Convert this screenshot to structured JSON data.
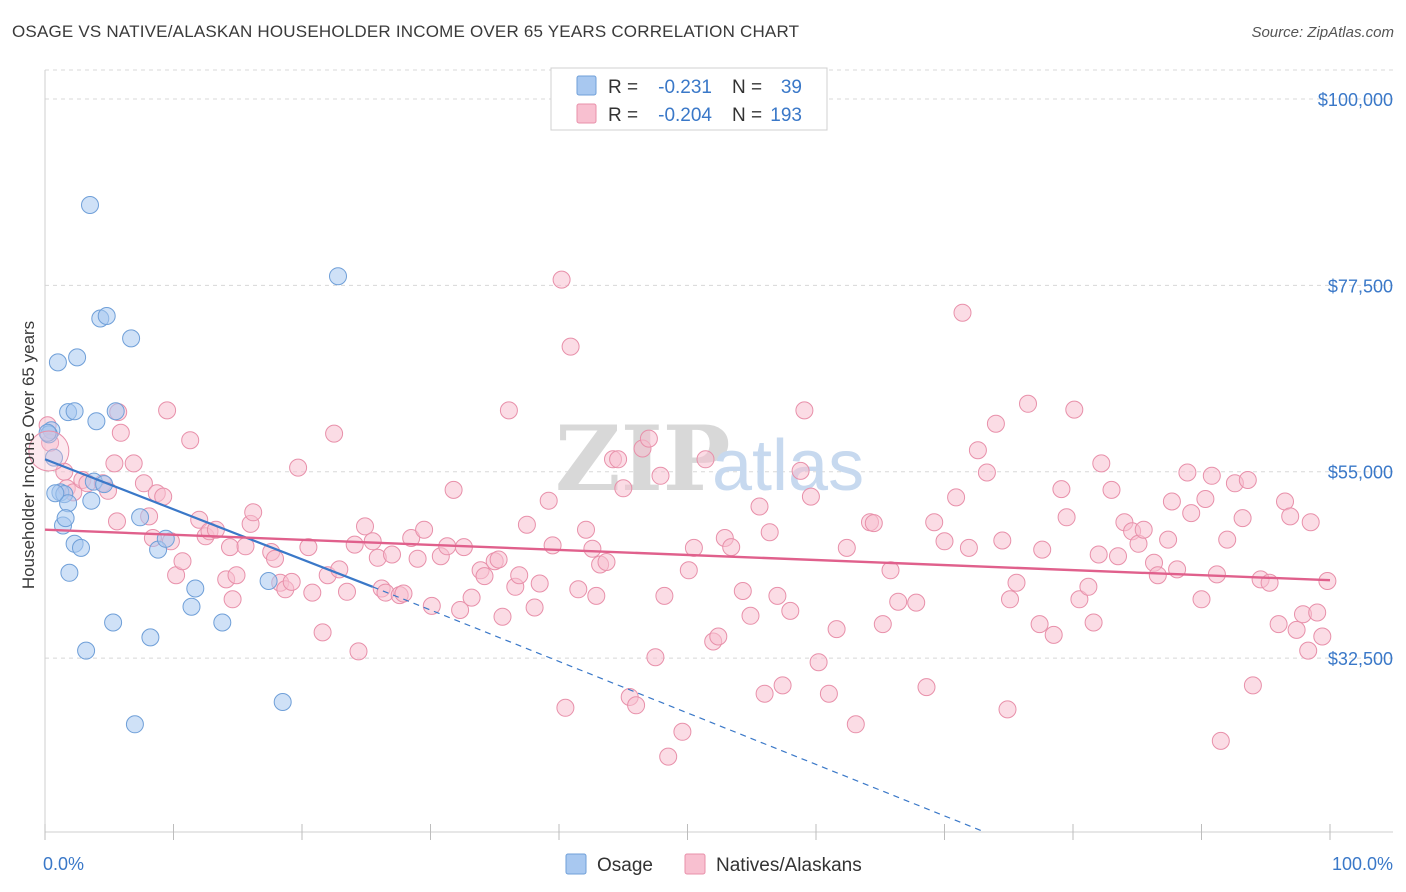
{
  "title": "OSAGE VS NATIVE/ALASKAN HOUSEHOLDER INCOME OVER 65 YEARS CORRELATION CHART",
  "source": "Source: ZipAtlas.com",
  "watermark": {
    "part1": "ZIP",
    "part2": "atlas"
  },
  "legend": {
    "rows": [
      {
        "r_label": "R =",
        "r_value": "-0.231",
        "n_label": "N =",
        "n_value": "39",
        "color": "#a8c8f0",
        "stroke": "#6f9fd8"
      },
      {
        "r_label": "R =",
        "r_value": "-0.204",
        "n_label": "N =",
        "n_value": "193",
        "color": "#f8c0d0",
        "stroke": "#e890aa"
      }
    ]
  },
  "bottom_legend": [
    {
      "label": "Osage",
      "color": "#a8c8f0",
      "stroke": "#6f9fd8"
    },
    {
      "label": "Natives/Alaskans",
      "color": "#f8c0d0",
      "stroke": "#e890aa"
    }
  ],
  "chart_data": {
    "type": "scatter",
    "title": "OSAGE VS NATIVE/ALASKAN HOUSEHOLDER INCOME OVER 65 YEARS CORRELATION CHART",
    "xlabel": "",
    "ylabel": "Householder Income Over 65 years",
    "x_tick_labels": [
      "0.0%",
      "100.0%"
    ],
    "y_tick_labels": [
      "$100,000",
      "$77,500",
      "$55,000",
      "$32,500"
    ],
    "y_ticks": [
      100000,
      77500,
      55000,
      32500
    ],
    "xlim": [
      0,
      100
    ],
    "ylim": [
      11500,
      103500
    ],
    "grid": true,
    "legend_position": "top-center",
    "series": [
      {
        "name": "Osage",
        "color": "#6f9fd8",
        "fill": "#a8c8f0",
        "points": [
          [
            3.5,
            87.2
          ],
          [
            22.8,
            78.6
          ],
          [
            4.3,
            73.5
          ],
          [
            4.8,
            73.8
          ],
          [
            6.7,
            71.1
          ],
          [
            1.0,
            68.2
          ],
          [
            2.5,
            68.8
          ],
          [
            1.8,
            62.2
          ],
          [
            2.3,
            62.3
          ],
          [
            5.5,
            62.3
          ],
          [
            4.0,
            61.1
          ],
          [
            0.5,
            60.0
          ],
          [
            0.3,
            59.5
          ],
          [
            0.7,
            56.7
          ],
          [
            3.8,
            53.8
          ],
          [
            4.6,
            53.5
          ],
          [
            1.2,
            52.5
          ],
          [
            1.5,
            52.3
          ],
          [
            3.6,
            51.5
          ],
          [
            1.8,
            51.2
          ],
          [
            7.4,
            49.5
          ],
          [
            1.4,
            48.5
          ],
          [
            2.3,
            46.3
          ],
          [
            2.8,
            45.8
          ],
          [
            8.8,
            45.6
          ],
          [
            9.4,
            46.9
          ],
          [
            1.9,
            42.8
          ],
          [
            11.7,
            40.9
          ],
          [
            17.4,
            41.8
          ],
          [
            11.4,
            38.7
          ],
          [
            5.3,
            36.8
          ],
          [
            13.8,
            36.8
          ],
          [
            8.2,
            35.0
          ],
          [
            3.2,
            33.4
          ],
          [
            18.5,
            27.2
          ],
          [
            7.0,
            24.5
          ],
          [
            0.2,
            59.7
          ],
          [
            0.8,
            52.4
          ],
          [
            1.6,
            49.4
          ]
        ],
        "trend": {
          "x0": 0,
          "y0": 56.5,
          "x1": 25.5,
          "y1": 41.1,
          "dash_x1": 100,
          "dash_y1": -5.2
        }
      },
      {
        "name": "Natives/Alaskans",
        "color": "#e890aa",
        "fill": "#f8c0d0",
        "points": [
          [
            0.2,
            60.6
          ],
          [
            0.4,
            58.5
          ],
          [
            1.5,
            55.0
          ],
          [
            1.7,
            53.0
          ],
          [
            2.2,
            52.5
          ],
          [
            2.9,
            54.0
          ],
          [
            3.3,
            53.6
          ],
          [
            4.5,
            53.6
          ],
          [
            4.9,
            52.7
          ],
          [
            5.4,
            56.0
          ],
          [
            5.6,
            49.0
          ],
          [
            5.7,
            62.2
          ],
          [
            5.9,
            59.7
          ],
          [
            6.9,
            56.0
          ],
          [
            7.7,
            53.6
          ],
          [
            8.1,
            49.6
          ],
          [
            8.4,
            47.0
          ],
          [
            8.7,
            52.4
          ],
          [
            9.2,
            52.0
          ],
          [
            9.5,
            62.4
          ],
          [
            9.8,
            46.6
          ],
          [
            10.2,
            42.5
          ],
          [
            10.7,
            44.2
          ],
          [
            11.3,
            58.8
          ],
          [
            12.0,
            49.2
          ],
          [
            12.5,
            47.2
          ],
          [
            12.8,
            47.8
          ],
          [
            13.3,
            48.0
          ],
          [
            14.1,
            42.0
          ],
          [
            14.4,
            45.9
          ],
          [
            14.6,
            39.6
          ],
          [
            14.9,
            42.5
          ],
          [
            15.6,
            46.0
          ],
          [
            16.0,
            48.7
          ],
          [
            16.2,
            50.1
          ],
          [
            17.6,
            45.3
          ],
          [
            17.9,
            44.5
          ],
          [
            18.3,
            41.6
          ],
          [
            18.7,
            40.8
          ],
          [
            19.2,
            41.7
          ],
          [
            19.7,
            55.5
          ],
          [
            20.5,
            45.9
          ],
          [
            20.8,
            40.4
          ],
          [
            21.6,
            35.6
          ],
          [
            22.0,
            42.5
          ],
          [
            22.5,
            59.6
          ],
          [
            22.9,
            43.2
          ],
          [
            23.5,
            40.5
          ],
          [
            24.1,
            46.2
          ],
          [
            24.4,
            33.3
          ],
          [
            24.9,
            48.4
          ],
          [
            25.5,
            46.6
          ],
          [
            25.9,
            44.6
          ],
          [
            26.2,
            40.9
          ],
          [
            26.5,
            40.4
          ],
          [
            27.0,
            45.0
          ],
          [
            27.6,
            40.1
          ],
          [
            27.9,
            40.3
          ],
          [
            28.5,
            47.0
          ],
          [
            29.0,
            44.5
          ],
          [
            29.5,
            48.0
          ],
          [
            30.1,
            38.8
          ],
          [
            30.8,
            44.8
          ],
          [
            31.3,
            46.0
          ],
          [
            31.8,
            52.8
          ],
          [
            32.3,
            38.3
          ],
          [
            32.6,
            45.9
          ],
          [
            33.2,
            39.8
          ],
          [
            33.9,
            43.1
          ],
          [
            34.2,
            42.4
          ],
          [
            35.0,
            44.2
          ],
          [
            35.3,
            44.4
          ],
          [
            35.6,
            37.5
          ],
          [
            36.1,
            62.4
          ],
          [
            36.6,
            41.1
          ],
          [
            36.9,
            42.5
          ],
          [
            37.5,
            48.6
          ],
          [
            38.1,
            38.6
          ],
          [
            38.5,
            41.5
          ],
          [
            39.2,
            51.5
          ],
          [
            39.5,
            46.1
          ],
          [
            40.2,
            78.2
          ],
          [
            40.5,
            26.5
          ],
          [
            40.9,
            70.1
          ],
          [
            41.5,
            40.8
          ],
          [
            42.1,
            48.0
          ],
          [
            42.6,
            45.7
          ],
          [
            42.9,
            40.0
          ],
          [
            43.2,
            43.8
          ],
          [
            43.7,
            44.1
          ],
          [
            44.2,
            56.5
          ],
          [
            44.6,
            56.5
          ],
          [
            45.0,
            53.0
          ],
          [
            45.5,
            27.8
          ],
          [
            46.0,
            26.8
          ],
          [
            46.5,
            57.8
          ],
          [
            47.0,
            59.0
          ],
          [
            47.5,
            32.6
          ],
          [
            47.9,
            54.5
          ],
          [
            48.2,
            40.0
          ],
          [
            48.5,
            20.6
          ],
          [
            49.6,
            23.6
          ],
          [
            50.1,
            43.1
          ],
          [
            50.5,
            45.8
          ],
          [
            51.4,
            56.5
          ],
          [
            52.0,
            34.5
          ],
          [
            52.4,
            35.1
          ],
          [
            52.9,
            47.0
          ],
          [
            53.4,
            45.9
          ],
          [
            54.3,
            40.6
          ],
          [
            54.9,
            37.6
          ],
          [
            55.6,
            50.8
          ],
          [
            56.0,
            28.2
          ],
          [
            56.4,
            47.7
          ],
          [
            57.0,
            40.0
          ],
          [
            57.4,
            29.2
          ],
          [
            58.0,
            38.2
          ],
          [
            58.8,
            55.1
          ],
          [
            59.1,
            62.4
          ],
          [
            59.6,
            52.0
          ],
          [
            60.2,
            32.0
          ],
          [
            61.0,
            28.2
          ],
          [
            61.6,
            36.0
          ],
          [
            62.4,
            45.8
          ],
          [
            63.1,
            24.5
          ],
          [
            64.2,
            48.9
          ],
          [
            64.5,
            48.8
          ],
          [
            65.2,
            36.6
          ],
          [
            65.8,
            43.1
          ],
          [
            66.4,
            39.3
          ],
          [
            67.8,
            39.2
          ],
          [
            68.6,
            29.0
          ],
          [
            69.2,
            48.9
          ],
          [
            70.0,
            46.6
          ],
          [
            70.9,
            51.9
          ],
          [
            71.4,
            74.2
          ],
          [
            71.9,
            45.8
          ],
          [
            72.6,
            57.6
          ],
          [
            73.3,
            54.9
          ],
          [
            74.0,
            60.8
          ],
          [
            74.5,
            46.7
          ],
          [
            74.9,
            26.3
          ],
          [
            75.1,
            39.6
          ],
          [
            75.6,
            41.6
          ],
          [
            76.5,
            63.2
          ],
          [
            77.4,
            36.6
          ],
          [
            77.6,
            45.6
          ],
          [
            78.5,
            35.3
          ],
          [
            79.1,
            52.9
          ],
          [
            79.5,
            49.5
          ],
          [
            80.1,
            62.5
          ],
          [
            80.5,
            39.6
          ],
          [
            81.2,
            41.1
          ],
          [
            81.6,
            36.8
          ],
          [
            82.0,
            45.0
          ],
          [
            82.2,
            56.0
          ],
          [
            83.0,
            52.8
          ],
          [
            83.5,
            44.8
          ],
          [
            84.0,
            48.9
          ],
          [
            84.6,
            47.8
          ],
          [
            85.1,
            46.3
          ],
          [
            85.5,
            48.0
          ],
          [
            86.3,
            44.0
          ],
          [
            86.6,
            42.5
          ],
          [
            87.4,
            46.8
          ],
          [
            87.7,
            51.4
          ],
          [
            88.1,
            43.2
          ],
          [
            88.9,
            54.9
          ],
          [
            89.2,
            50.0
          ],
          [
            90.0,
            39.6
          ],
          [
            90.3,
            51.7
          ],
          [
            90.8,
            54.5
          ],
          [
            91.2,
            42.6
          ],
          [
            91.5,
            22.5
          ],
          [
            92.0,
            46.8
          ],
          [
            92.6,
            53.6
          ],
          [
            93.2,
            49.4
          ],
          [
            93.6,
            54.0
          ],
          [
            94.0,
            29.2
          ],
          [
            94.6,
            42.0
          ],
          [
            95.3,
            41.6
          ],
          [
            96.0,
            36.6
          ],
          [
            96.5,
            51.4
          ],
          [
            96.9,
            49.6
          ],
          [
            97.4,
            35.9
          ],
          [
            97.9,
            37.8
          ],
          [
            98.3,
            33.4
          ],
          [
            98.5,
            48.9
          ],
          [
            99.0,
            38.0
          ],
          [
            99.4,
            35.1
          ],
          [
            99.8,
            41.8
          ]
        ],
        "trend": {
          "x0": 0,
          "y0": 48.0,
          "x1": 100,
          "y1": 41.9
        }
      }
    ]
  }
}
